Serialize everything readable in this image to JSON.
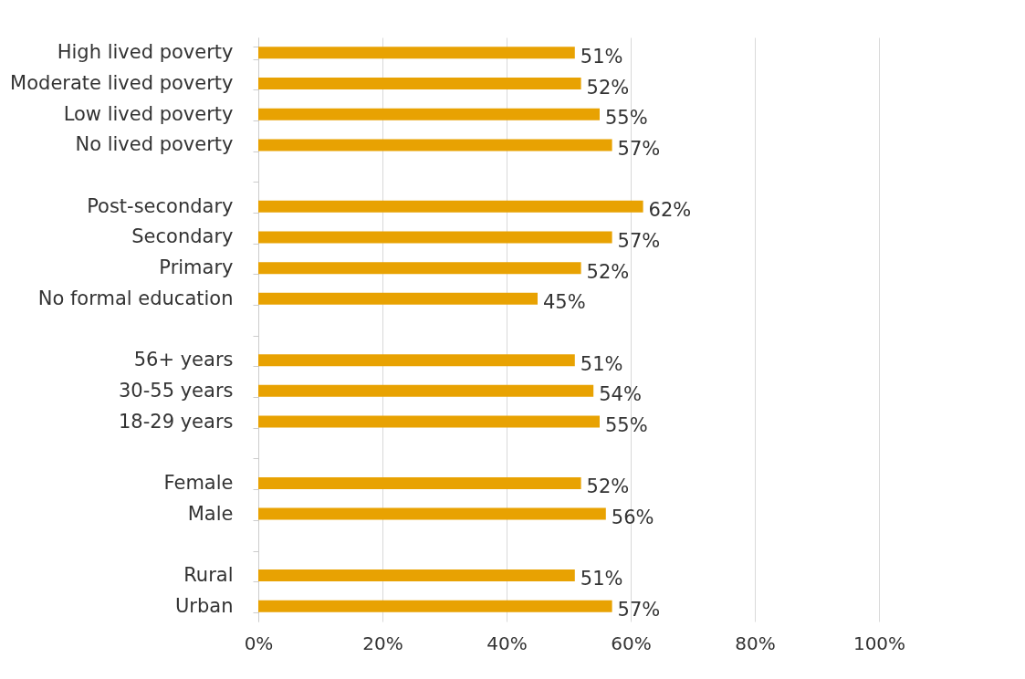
{
  "chart_data": {
    "type": "bar",
    "orientation": "horizontal",
    "categories": [
      "High lived poverty",
      "Moderate lived poverty",
      "Low lived poverty",
      "No lived poverty",
      null,
      "Post-secondary",
      "Secondary",
      "Primary",
      "No formal education",
      null,
      "56+ years",
      "30-55 years",
      "18-29 years",
      null,
      "Female",
      "Male",
      null,
      "Rural",
      "Urban"
    ],
    "series": [
      {
        "color": "#e8a202",
        "values": [
          51,
          52,
          55,
          57,
          null,
          62,
          57,
          52,
          45,
          null,
          51,
          54,
          55,
          null,
          52,
          56,
          null,
          51,
          57
        ],
        "value_labels": [
          "51%",
          "52%",
          "55%",
          "57%",
          null,
          "62%",
          "57%",
          "52%",
          "45%",
          null,
          "51%",
          "54%",
          "55%",
          null,
          "52%",
          "56%",
          null,
          "51%",
          "57%"
        ]
      }
    ],
    "xlim": [
      0,
      100
    ],
    "xticks": [
      {
        "value": 0,
        "label": "0%"
      },
      {
        "value": 20,
        "label": "20%"
      },
      {
        "value": 40,
        "label": "40%"
      },
      {
        "value": 60,
        "label": "60%"
      },
      {
        "value": 80,
        "label": "80%"
      },
      {
        "value": 100,
        "label": "100%"
      }
    ],
    "grid": "x"
  }
}
